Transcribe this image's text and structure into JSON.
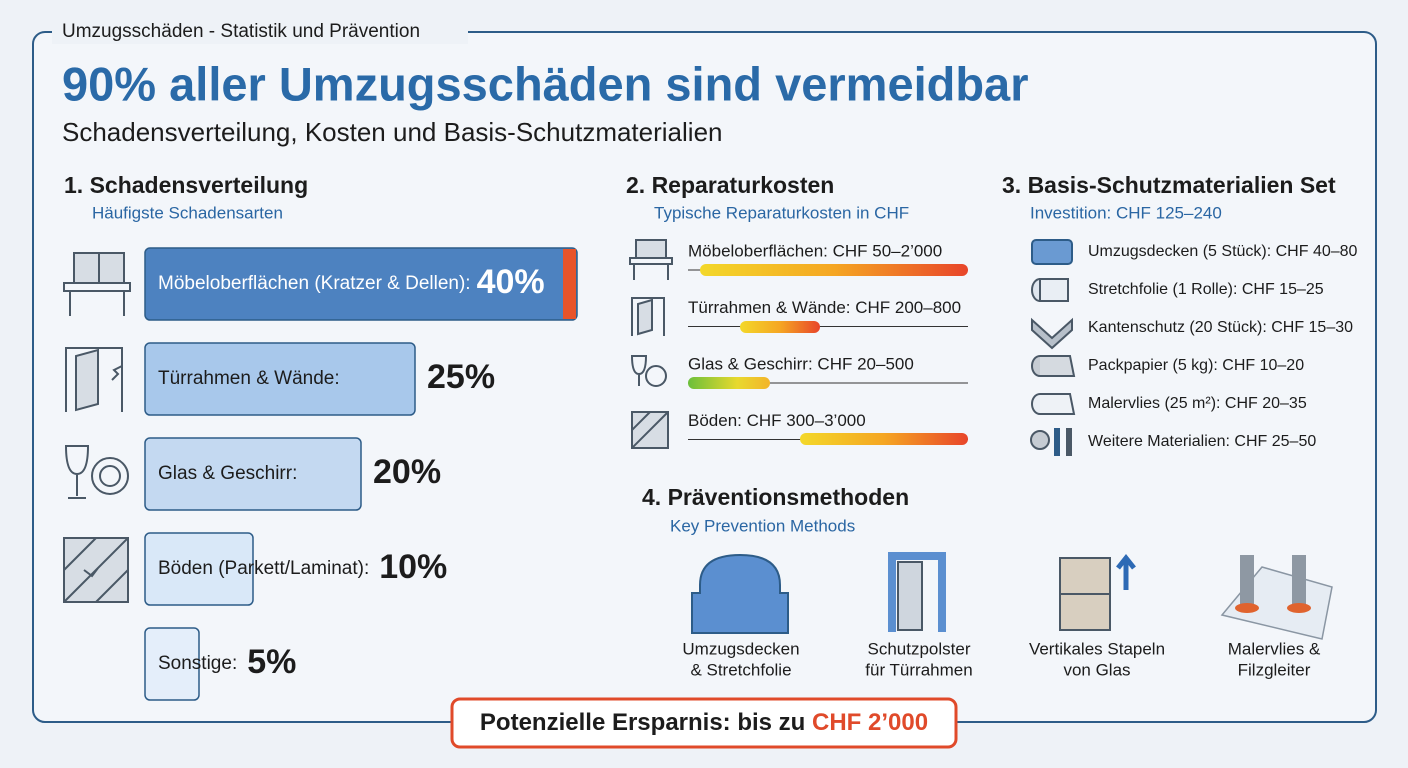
{
  "header": {
    "label": "Umzugsschäden - Statistik und Prävention",
    "title": "90% aller Umzugsschäden sind vermeidbar",
    "subtitle": "Schadensverteilung, Kosten und Basis-Schutzmaterialien"
  },
  "damage": {
    "heading": "1. Schadensverteilung",
    "subheading": "Häufigste Schadensarten",
    "items": [
      {
        "label": "Möbeloberflächen (Kratzer & Dellen):",
        "value": 40,
        "value_label": "40%"
      },
      {
        "label": "Türrahmen & Wände:",
        "value": 25,
        "value_label": "25%"
      },
      {
        "label": "Glas & Geschirr:",
        "value": 20,
        "value_label": "20%"
      },
      {
        "label": "Böden (Parkett/Laminat):",
        "value": 10,
        "value_label": "10%"
      },
      {
        "label": "Sonstige:",
        "value": 5,
        "value_label": "5%"
      }
    ]
  },
  "costs": {
    "heading": "2. Reparaturkosten",
    "subheading": "Typische Reparaturkosten in CHF",
    "items": [
      "Möbeloberflächen: CHF 50–2’000",
      "Türrahmen & Wände: CHF 200–800",
      "Glas & Geschirr: CHF 20–500",
      "Böden: CHF 300–3’000"
    ]
  },
  "materials": {
    "heading": "3. Basis-Schutzmaterialien Set",
    "subheading": "Investition: CHF 125–240",
    "items": [
      "Umzugsdecken (5 Stück): CHF 40–80",
      "Stretchfolie (1 Rolle): CHF 15–25",
      "Kantenschutz (20 Stück): CHF 15–30",
      "Packpapier (5 kg): CHF 10–20",
      "Malervlies (25 m²): CHF 20–35",
      "Weitere Materialien: CHF 25–50"
    ]
  },
  "prevention": {
    "heading": "4. Präventionsmethoden",
    "subheading": "Key Prevention Methods",
    "items": [
      [
        "Umzugsdecken",
        "& Stretchfolie"
      ],
      [
        "Schutzpolster",
        "für Türrahmen"
      ],
      [
        "Vertikales Stapeln",
        "von Glas"
      ],
      [
        "Malervlies &",
        "Filzgleiter"
      ]
    ]
  },
  "savings": {
    "text": "Potenzielle Ersparnis: bis zu",
    "amount": "CHF 2’000"
  }
}
